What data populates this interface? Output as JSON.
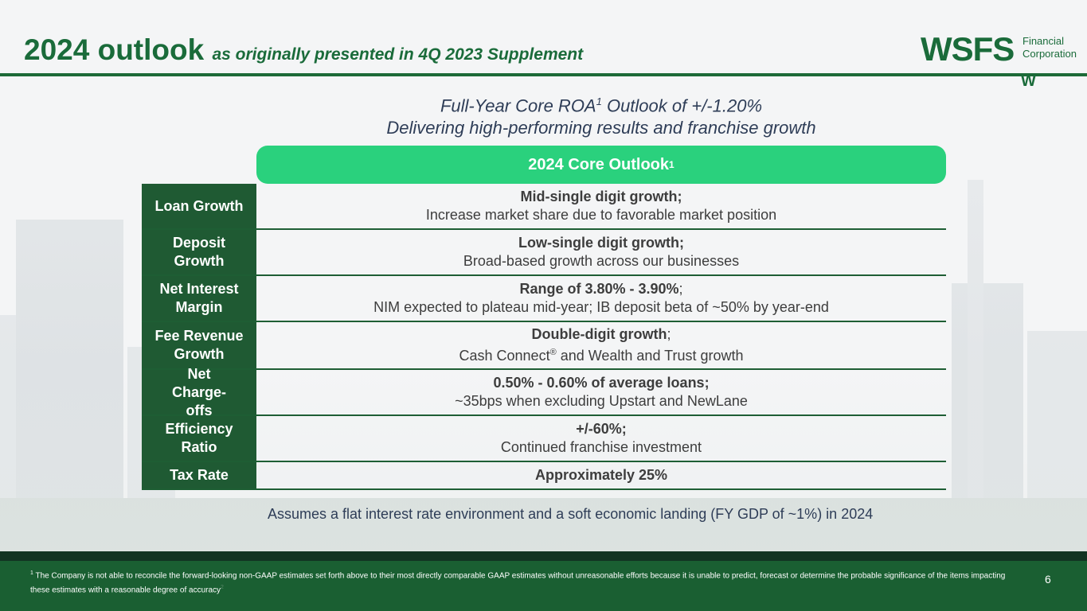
{
  "title": {
    "main": "2024 outlook",
    "subtitle": "as originally presented in 4Q 2023 Supplement"
  },
  "logo": {
    "name": "WSFS",
    "line1": "Financial",
    "line2": "Corporation",
    "mark": "W"
  },
  "headline": {
    "line1_prefix": "Full-Year Core ROA",
    "line1_sup": "1",
    "line1_suffix": " Outlook of +/-1.20%",
    "line2": "Delivering high-performing results and franchise growth"
  },
  "outlook_header": {
    "label": "2024 Core Outlook",
    "sup": "1"
  },
  "rows": [
    {
      "label": "Loan Growth",
      "bold": "Mid-single digit growth;",
      "detail": "Increase market share due to favorable market position"
    },
    {
      "label": "Deposit Growth",
      "bold": "Low-single digit growth;",
      "detail": "Broad-based growth across our businesses"
    },
    {
      "label": "Net Interest Margin",
      "bold": "Range of 3.80% - 3.90%",
      "bold_suffix": ";",
      "detail": "NIM expected to plateau mid-year; IB deposit beta of ~50% by year-end"
    },
    {
      "label": "Fee Revenue Growth",
      "bold": "Double-digit growth",
      "bold_suffix": ";",
      "detail_prefix": "Cash Connect",
      "detail_sup": "®",
      "detail_suffix": " and Wealth and Trust growth"
    },
    {
      "label": "Net Charge-offs",
      "bold": "0.50% - 0.60% of average loans;",
      "detail": "~35bps when excluding Upstart and NewLane"
    },
    {
      "label": "Efficiency Ratio",
      "bold": "+/-60%;",
      "detail": "Continued franchise investment"
    },
    {
      "label": "Tax Rate",
      "bold": "Approximately 25%",
      "detail": ""
    }
  ],
  "assumption": "Assumes a flat interest rate environment and a soft economic landing (FY GDP of ~1%) in 2024",
  "footer": {
    "footnote_sup": "1",
    "footnote": " The Company is not able to reconcile the forward-looking non-GAAP estimates set forth above to their most directly comparable GAAP estimates without unreasonable efforts because it is unable to predict, forecast or determine the probable significance of the items impacting these estimates with a reasonable degree of accuracy",
    "footnote_end_sup": "2",
    "page_number": "6"
  },
  "colors": {
    "brand_green": "#1a6b3a",
    "header_green": "#2ad17d",
    "label_green": "#1f5a33",
    "footer_green": "#1a5f32"
  }
}
